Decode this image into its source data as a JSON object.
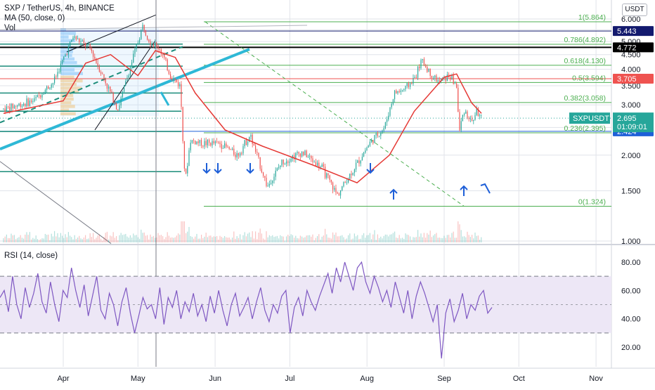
{
  "header": {
    "symbol_line": "SXP / TetherUS, 4h, BINANCE",
    "ma_line": "MA (50, close, 0)",
    "vol_line": "Vol",
    "currency_button": "USDT"
  },
  "rsi_pane": {
    "label": "RSI (14, close)"
  },
  "colors": {
    "grid": "#e1e3ea",
    "candle_up": "#26a69a",
    "candle_down": "#ef5350",
    "ma": "#e53935",
    "fib": "#4caf50",
    "trend_cyan": "#2eb8d6",
    "rsi_line": "#7e57c2",
    "rsi_band": "#ede7f6",
    "arrow_blue": "#1e5fd8",
    "tag_navy": "#131a6e",
    "tag_black": "#000000",
    "tag_red": "#ef5350",
    "tag_teal": "#26a69a",
    "tag_blue": "#1e5fd8"
  },
  "chart_data": [
    {
      "type": "candlestick",
      "title": "SXP / TetherUS, 4h, BINANCE",
      "indicators": [
        "MA (50, close, 0)",
        "Vol"
      ],
      "y_axis": {
        "scale": "log",
        "ticks": [
          "6.000",
          "5.500",
          "5.000",
          "4.500",
          "4.000",
          "3.500",
          "3.000",
          "2.500",
          "2.000",
          "1.500",
          "1.000"
        ],
        "ylim": [
          0.95,
          6.5
        ]
      },
      "x_axis": {
        "ticks": [
          "Apr",
          "May",
          "Jun",
          "Jul",
          "Aug",
          "Sep",
          "Oct",
          "Nov"
        ]
      },
      "grid": true,
      "close_path": [
        {
          "x": "2021-03-08",
          "y": 2.9
        },
        {
          "x": "2021-03-20",
          "y": 3.1
        },
        {
          "x": "2021-03-28",
          "y": 3.6
        },
        {
          "x": "2021-04-05",
          "y": 5.2
        },
        {
          "x": "2021-04-12",
          "y": 4.7
        },
        {
          "x": "2021-04-18",
          "y": 3.6
        },
        {
          "x": "2021-04-23",
          "y": 2.9
        },
        {
          "x": "2021-04-28",
          "y": 4.1
        },
        {
          "x": "2021-05-03",
          "y": 5.7
        },
        {
          "x": "2021-05-06",
          "y": 5.0
        },
        {
          "x": "2021-05-10",
          "y": 4.7
        },
        {
          "x": "2021-05-14",
          "y": 3.8
        },
        {
          "x": "2021-05-18",
          "y": 3.5
        },
        {
          "x": "2021-05-20",
          "y": 1.6
        },
        {
          "x": "2021-05-22",
          "y": 2.25
        },
        {
          "x": "2021-05-27",
          "y": 2.2
        },
        {
          "x": "2021-06-03",
          "y": 2.2
        },
        {
          "x": "2021-06-10",
          "y": 2.0
        },
        {
          "x": "2021-06-15",
          "y": 2.35
        },
        {
          "x": "2021-06-22",
          "y": 1.55
        },
        {
          "x": "2021-06-28",
          "y": 1.9
        },
        {
          "x": "2021-07-06",
          "y": 2.05
        },
        {
          "x": "2021-07-14",
          "y": 1.8
        },
        {
          "x": "2021-07-20",
          "y": 1.45
        },
        {
          "x": "2021-07-26",
          "y": 1.75
        },
        {
          "x": "2021-08-02",
          "y": 2.2
        },
        {
          "x": "2021-08-08",
          "y": 2.5
        },
        {
          "x": "2021-08-12",
          "y": 3.3
        },
        {
          "x": "2021-08-16",
          "y": 3.4
        },
        {
          "x": "2021-08-20",
          "y": 3.7
        },
        {
          "x": "2021-08-23",
          "y": 4.3
        },
        {
          "x": "2021-08-26",
          "y": 3.9
        },
        {
          "x": "2021-08-30",
          "y": 3.6
        },
        {
          "x": "2021-09-03",
          "y": 3.8
        },
        {
          "x": "2021-09-06",
          "y": 3.5
        },
        {
          "x": "2021-09-07",
          "y": 2.4
        },
        {
          "x": "2021-09-09",
          "y": 2.9
        },
        {
          "x": "2021-09-12",
          "y": 2.6
        },
        {
          "x": "2021-09-14",
          "y": 2.85
        },
        {
          "x": "2021-09-16",
          "y": 2.695
        }
      ],
      "ma_path": [
        {
          "x": "2021-03-08",
          "y": 2.8
        },
        {
          "x": "2021-04-01",
          "y": 3.1
        },
        {
          "x": "2021-04-10",
          "y": 4.2
        },
        {
          "x": "2021-04-20",
          "y": 4.5
        },
        {
          "x": "2021-05-01",
          "y": 3.8
        },
        {
          "x": "2021-05-08",
          "y": 4.65
        },
        {
          "x": "2021-05-16",
          "y": 4.4
        },
        {
          "x": "2021-05-24",
          "y": 3.3
        },
        {
          "x": "2021-06-05",
          "y": 2.45
        },
        {
          "x": "2021-06-20",
          "y": 2.15
        },
        {
          "x": "2021-07-10",
          "y": 1.85
        },
        {
          "x": "2021-07-28",
          "y": 1.6
        },
        {
          "x": "2021-08-10",
          "y": 2.0
        },
        {
          "x": "2021-08-20",
          "y": 2.85
        },
        {
          "x": "2021-09-01",
          "y": 3.75
        },
        {
          "x": "2021-09-06",
          "y": 3.85
        },
        {
          "x": "2021-09-12",
          "y": 3.05
        },
        {
          "x": "2021-09-16",
          "y": 2.8
        }
      ],
      "fibonacci": [
        {
          "label": "1(5.864)",
          "value": 5.864
        },
        {
          "label": "0.786(4.892)",
          "value": 4.892
        },
        {
          "label": "0.618(4.130)",
          "value": 4.13
        },
        {
          "label": "0.5(3.594)",
          "value": 3.594
        },
        {
          "label": "0.382(3.058)",
          "value": 3.058
        },
        {
          "label": "0.236(2.395)",
          "value": 2.395
        },
        {
          "label": "0(1.324)",
          "value": 1.324
        }
      ],
      "horizontal_levels": [
        {
          "value": 5.443,
          "label": "5.443",
          "color": "#131a6e"
        },
        {
          "value": 4.772,
          "label": "4.772",
          "color": "#000000"
        },
        {
          "value": 3.705,
          "label": "3.705",
          "color": "#ef5350"
        },
        {
          "value": 2.424,
          "label": "2.424",
          "color": "#1e5fd8"
        }
      ],
      "price_tag": {
        "symbol": "SXPUSDT",
        "price": "2.695",
        "countdown": "01:09:01"
      }
    },
    {
      "type": "line",
      "title": "RSI (14, close)",
      "y_axis": {
        "ticks": [
          "80.00",
          "60.00",
          "40.00",
          "20.00"
        ],
        "ylim": [
          5,
          85
        ]
      },
      "bands": [
        30,
        70
      ],
      "midline": 50,
      "series": [
        {
          "values": [
            55,
            60,
            45,
            70,
            50,
            40,
            62,
            48,
            58,
            72,
            52,
            44,
            66,
            50,
            38,
            60,
            55,
            76,
            60,
            48,
            64,
            42,
            56,
            70,
            46,
            40,
            58,
            50,
            35,
            52,
            62,
            44,
            30,
            42,
            55,
            47,
            50,
            40,
            62,
            36,
            55,
            48,
            60,
            40,
            52,
            45,
            58,
            42,
            50,
            38,
            56,
            44,
            60,
            46,
            35,
            50,
            58,
            42,
            48,
            55,
            40,
            52,
            62,
            46,
            38,
            50,
            44,
            56,
            60,
            30,
            48,
            55,
            42,
            60,
            52,
            46,
            56,
            64,
            72,
            58,
            76,
            66,
            80,
            70,
            60,
            76,
            80,
            66,
            58,
            70,
            62,
            52,
            60,
            48,
            66,
            55,
            44,
            60,
            40,
            56,
            66,
            58,
            48,
            38,
            50,
            12,
            44,
            54,
            38,
            46,
            58,
            40,
            50,
            46,
            56,
            60,
            44,
            48
          ]
        }
      ]
    }
  ]
}
